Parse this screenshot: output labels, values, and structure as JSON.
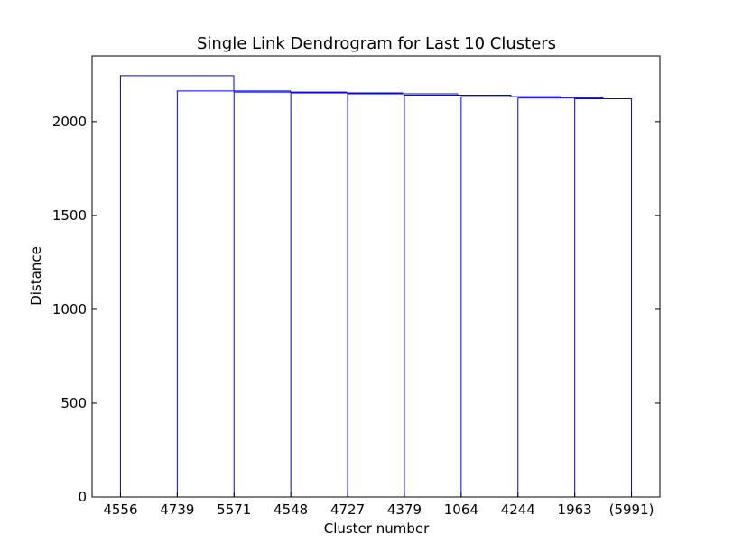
{
  "chart_data": {
    "type": "dendrogram",
    "title": "Single Link Dendrogram for Last 10 Clusters",
    "xlabel": "Cluster number",
    "ylabel": "Distance",
    "ylim": [
      0,
      2350
    ],
    "yticks": [
      0,
      500,
      1000,
      1500,
      2000
    ],
    "leaves": [
      "4556",
      "4739",
      "5571",
      "4548",
      "4727",
      "4379",
      "1064",
      "4244",
      "1963",
      "(5991)"
    ],
    "merges": [
      {
        "left": 8,
        "right": 9,
        "height": 2122
      },
      {
        "left": 7,
        "right": 10,
        "height": 2126
      },
      {
        "left": 6,
        "right": 11,
        "height": 2133
      },
      {
        "left": 5,
        "right": 12,
        "height": 2141
      },
      {
        "left": 4,
        "right": 13,
        "height": 2148
      },
      {
        "left": 3,
        "right": 14,
        "height": 2153
      },
      {
        "left": 2,
        "right": 15,
        "height": 2157
      },
      {
        "left": 1,
        "right": 16,
        "height": 2163
      },
      {
        "left": 0,
        "right": 17,
        "height": 2245
      }
    ],
    "line_color": "#0000ff",
    "grid": false
  }
}
